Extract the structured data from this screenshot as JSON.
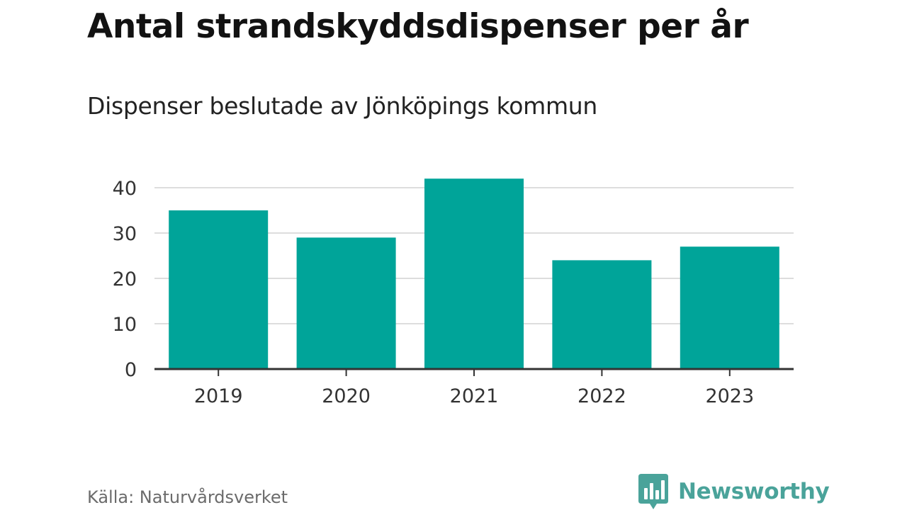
{
  "header": {
    "title": "Antal strandskyddsdispenser per år",
    "subtitle": "Dispenser beslutade av Jönköpings kommun"
  },
  "footer": {
    "source": "Källa: Naturvårdsverket",
    "brand": "Newsworthy",
    "brand_icon": "newsworthy-logo-icon"
  },
  "colors": {
    "bar": "#00a499",
    "gridline": "#dddddd",
    "axis": "#333333",
    "brand": "#4aa39a"
  },
  "chart_data": {
    "type": "bar",
    "title": "Antal strandskyddsdispenser per år",
    "subtitle": "Dispenser beslutade av Jönköpings kommun",
    "categories": [
      "2019",
      "2020",
      "2021",
      "2022",
      "2023"
    ],
    "values": [
      35,
      29,
      42,
      24,
      27
    ],
    "xlabel": "",
    "ylabel": "",
    "ylim": [
      0,
      42
    ],
    "yticks": [
      0,
      10,
      20,
      30,
      40
    ],
    "grid": true,
    "legend": "none"
  }
}
